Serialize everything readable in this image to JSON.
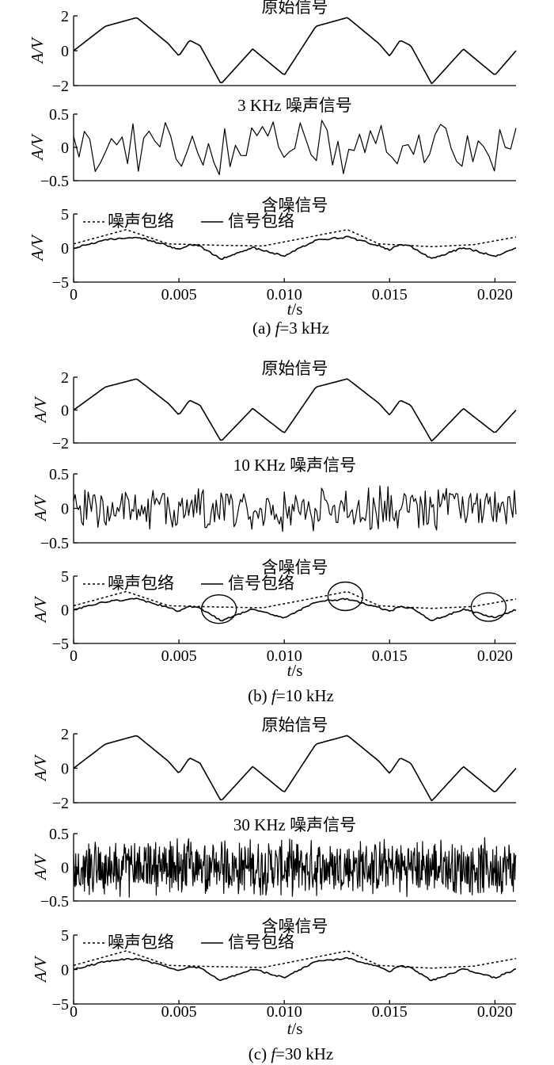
{
  "figure_parts": [
    {
      "caption_label": "(a)",
      "caption_var": "f",
      "caption_rest": "=3 kHz",
      "plots": [
        {
          "title": "原始信号",
          "kind": "original"
        },
        {
          "title": "3 KHz 噪声信号",
          "kind": "noise"
        },
        {
          "title": "含噪信号",
          "kind": "noisy"
        }
      ]
    },
    {
      "caption_label": "(b)",
      "caption_var": "f",
      "caption_rest": "=10 kHz",
      "plots": [
        {
          "title": "原始信号",
          "kind": "original"
        },
        {
          "title": "10 KHz 噪声信号",
          "kind": "noise"
        },
        {
          "title": "含噪信号",
          "kind": "noisy"
        }
      ]
    },
    {
      "caption_label": "(c)",
      "caption_var": "f",
      "caption_rest": "=30 kHz",
      "plots": [
        {
          "title": "原始信号",
          "kind": "original"
        },
        {
          "title": "30 KHz 噪声信号",
          "kind": "noise"
        },
        {
          "title": "含噪信号",
          "kind": "noisy"
        }
      ]
    }
  ],
  "ylabel": "A/V",
  "xlabel": "t/s",
  "legend": {
    "noise_envelope": "噪声包络",
    "signal_envelope": "信号包络"
  },
  "chart_data": [
    {
      "type": "line",
      "title": "原始信号",
      "ylim": [
        -2,
        2
      ],
      "yticks": [
        "2",
        "0",
        "−2"
      ],
      "xlim": [
        0,
        0.021
      ],
      "series": [
        {
          "x": [
            0,
            0.0015,
            0.003,
            0.0045,
            0.005,
            0.0055,
            0.006,
            0.007,
            0.0085,
            0.01,
            0.0115,
            0.013,
            0.0145,
            0.015,
            0.0155,
            0.016,
            0.017,
            0.0185,
            0.02,
            0.021
          ],
          "y": [
            0,
            1.4,
            1.9,
            0.4,
            -0.3,
            0.6,
            0.3,
            -1.9,
            0.1,
            -1.4,
            1.4,
            1.9,
            0.4,
            -0.3,
            0.6,
            0.3,
            -1.9,
            0.1,
            -1.4,
            0
          ]
        }
      ]
    },
    {
      "type": "line",
      "title": "3 KHz 噪声信号",
      "ylim": [
        -0.5,
        0.5
      ],
      "yticks": [
        "0.5",
        "0",
        "−0.5"
      ],
      "noise_frequency_khz": 3,
      "noise_amplitude": 0.45
    },
    {
      "type": "line",
      "title": "含噪信号",
      "ylim": [
        -5,
        5
      ],
      "yticks": [
        "5",
        "0",
        "−5"
      ],
      "xticks": [
        "0",
        "0.005",
        "0.010",
        "0.015",
        "0.020"
      ],
      "series_names": [
        "噪声包络",
        "信号包络"
      ]
    },
    {
      "type": "line",
      "title": "10 KHz 噪声信号",
      "ylim": [
        -0.5,
        0.5
      ],
      "yticks": [
        "0.5",
        "0",
        "−0.5"
      ],
      "noise_frequency_khz": 10,
      "noise_amplitude": 0.35
    },
    {
      "type": "line",
      "title": "30 KHz 噪声信号",
      "ylim": [
        -0.5,
        0.5
      ],
      "yticks": [
        "0.5",
        "0",
        "−0.5"
      ],
      "noise_frequency_khz": 30,
      "noise_amplitude": 0.45
    }
  ],
  "tick_labels": {
    "original_y": [
      "2",
      "0",
      "−2"
    ],
    "noise_y": [
      "0.5",
      "0",
      "−0.5"
    ],
    "noisy_y": [
      "5",
      "0",
      "−5"
    ],
    "x": [
      "0",
      "0.005",
      "0.010",
      "0.015",
      "0.020"
    ]
  }
}
